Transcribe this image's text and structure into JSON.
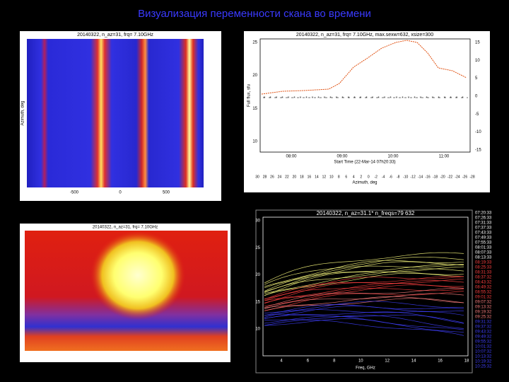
{
  "header": {
    "title": "Визуализация переменности скана во времени"
  },
  "panels": [
    {
      "title": "20140322, n_az=31, frq= 7.10GHz",
      "y_label": "Azimuth, deg",
      "x_ticks": [
        "-500",
        "0",
        "500"
      ]
    },
    {
      "title": "20140322, n_az=31, frq= 7.10GHz, max.sexw=632, xsize=300",
      "x_label": "Start Time (22-Mar-14 07h20:33)",
      "x2_label": "Azimuth, deg",
      "y_label": "Full flux, sfu",
      "x_ticks": [
        "08:00",
        "09:00",
        "10:00",
        "11:00"
      ],
      "y_ticks": [
        "10",
        "15",
        "20",
        "25"
      ],
      "y2_ticks": [
        "15",
        "10",
        "5",
        "0",
        "-5",
        "-10",
        "-15"
      ],
      "x2_ticks": [
        "30",
        "28",
        "26",
        "24",
        "22",
        "20",
        "18",
        "16",
        "14",
        "12",
        "10",
        "8",
        "6",
        "4",
        "2",
        "0",
        "-2",
        "-4",
        "-6",
        "-8",
        "-10",
        "-12",
        "-14",
        "-16",
        "-18",
        "-20",
        "-22",
        "-24",
        "-26",
        "-28"
      ]
    },
    {
      "title": "20140322, n_az=31, frq= 7.10GHz"
    },
    {
      "title": "20140322, n_az=31.1* n_freqs=79      632",
      "x_label": "Freq, GHz",
      "x_ticks": [
        "4",
        "6",
        "8",
        "10",
        "12",
        "14",
        "16",
        "18"
      ],
      "y_ticks": [
        "10",
        "15",
        "20",
        "25",
        "30"
      ],
      "legend": [
        "07:20:33",
        "07:26:33",
        "07:31:33",
        "07:37:33",
        "07:43:33",
        "07:49:33",
        "07:55:33",
        "08:01:33",
        "08:07:33",
        "08:13:33",
        "08:19:33",
        "08:25:33",
        "08:31:33",
        "08:37:32",
        "08:43:32",
        "08:49:32",
        "08:55:32",
        "09:01:32",
        "09:07:32",
        "09:13:32",
        "09:19:32",
        "09:25:32",
        "09:31:32",
        "09:37:32",
        "09:43:32",
        "09:49:32",
        "09:55:32",
        "10:01:32",
        "10:07:32",
        "10:13:32",
        "10:19:32",
        "10:25:32"
      ]
    }
  ]
}
